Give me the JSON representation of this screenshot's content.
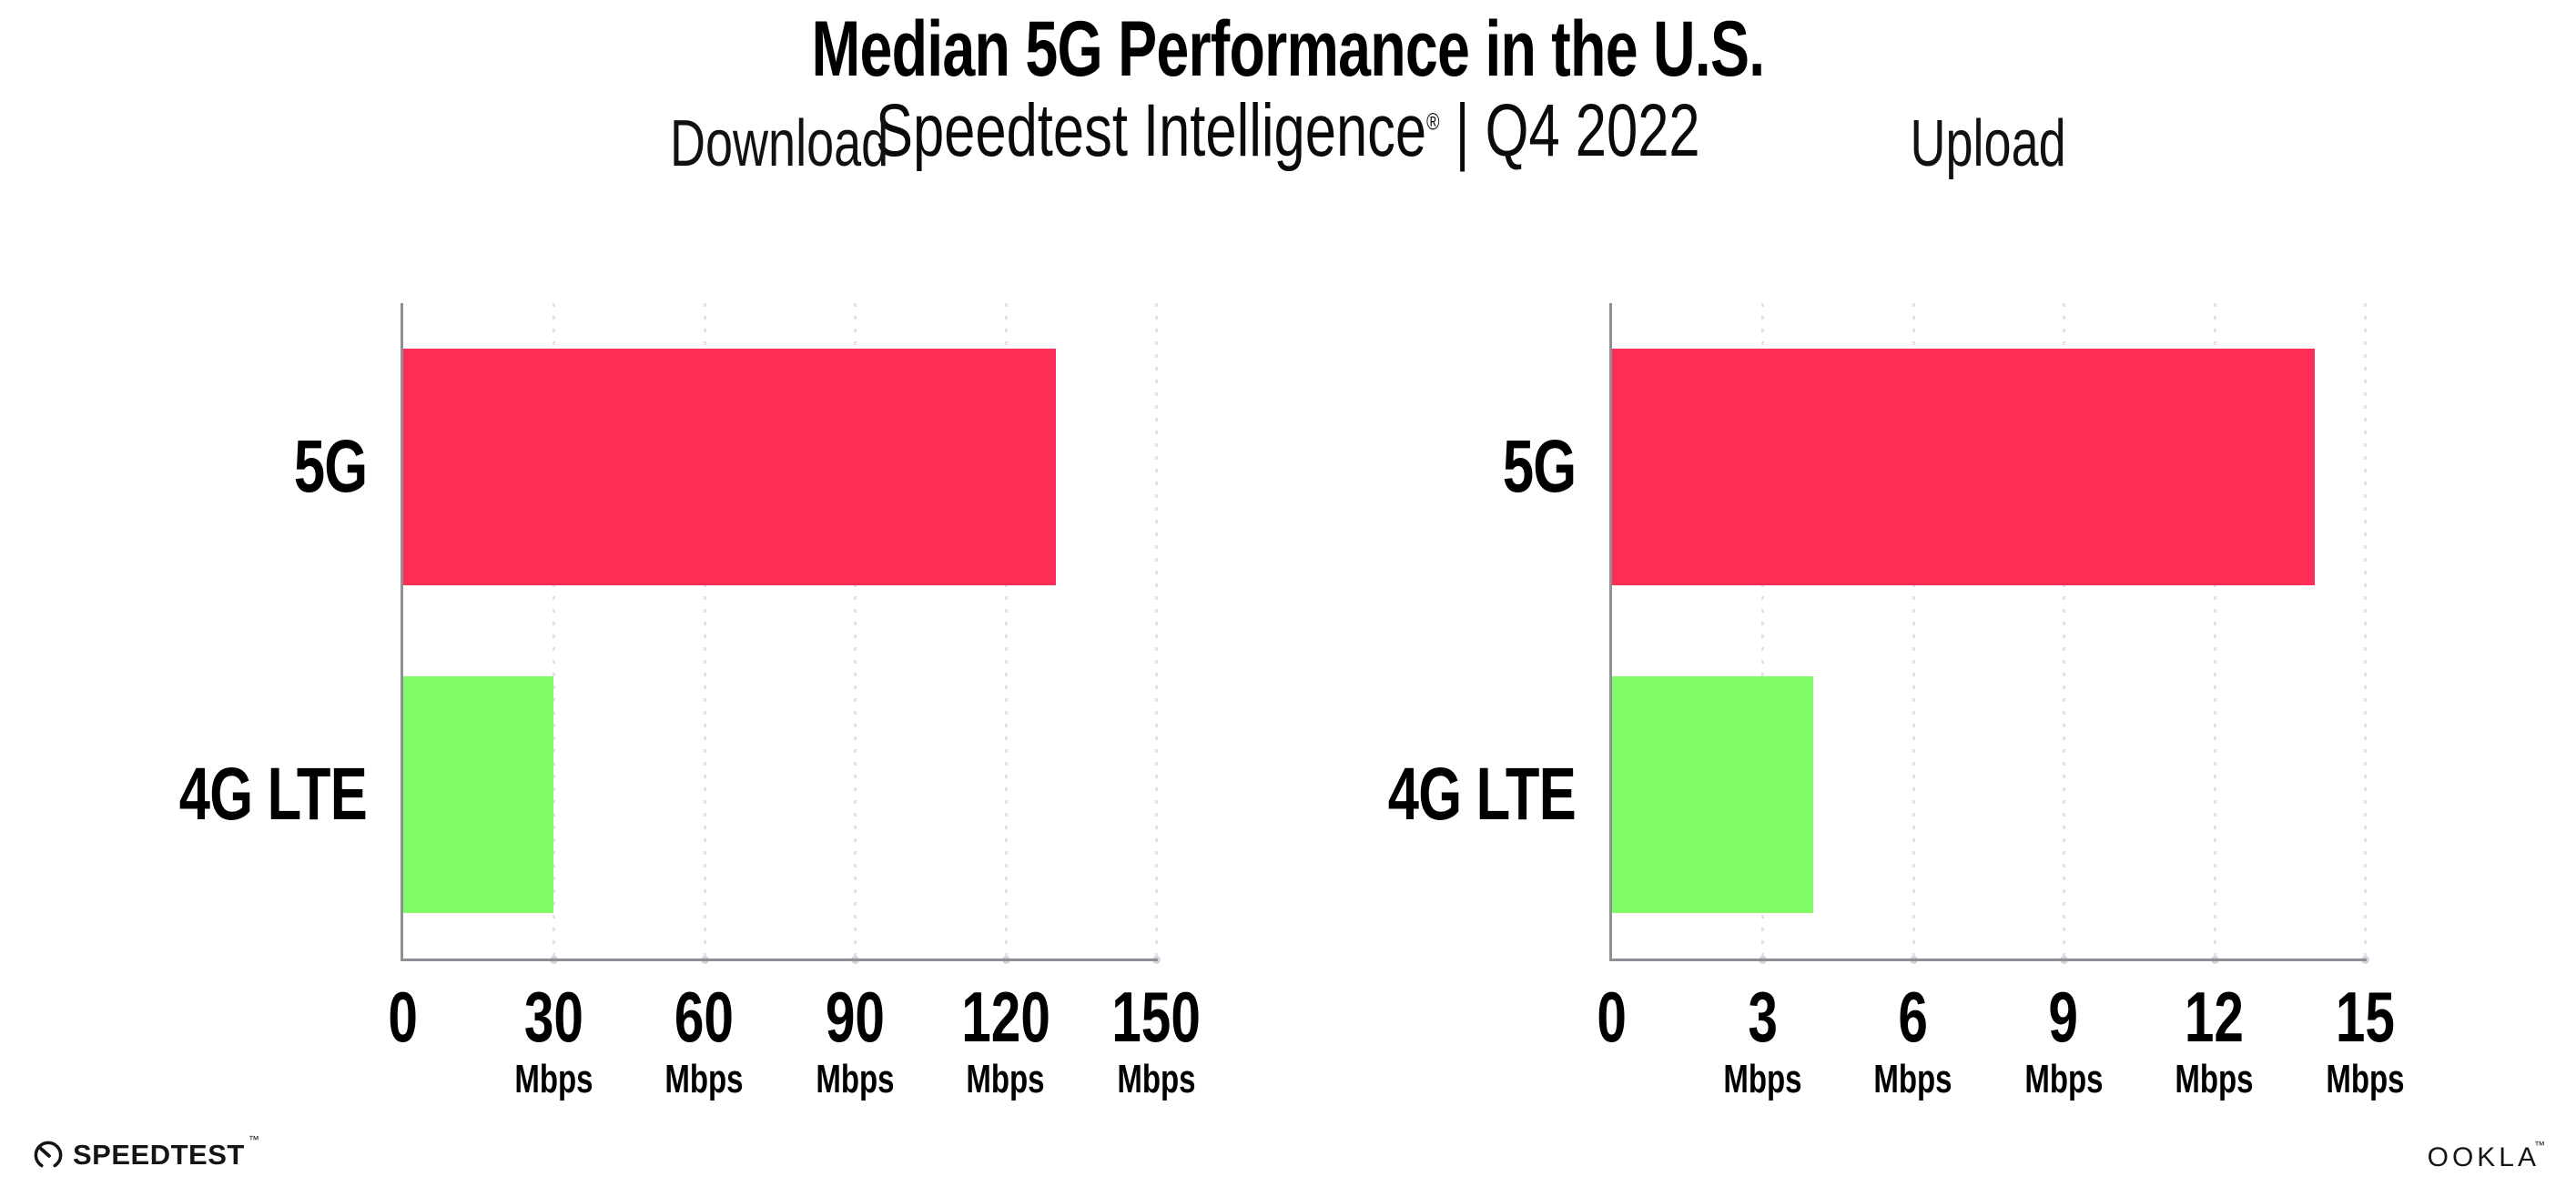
{
  "header": {
    "title": "Median 5G Performance in the U.S.",
    "subtitle_brand": "Speedtest Intelligence",
    "subtitle_reg": "®",
    "subtitle_rest": " | Q4 2022"
  },
  "footer": {
    "speedtest_label": "SPEEDTEST",
    "speedtest_tm": "™",
    "ookla_label": "OOKLA",
    "ookla_tm": "™"
  },
  "colors": {
    "bar_5g": "#FF2E56",
    "bar_4g": "#80FC66",
    "axis": "#8F8F96",
    "gridline": "#E2E2EC",
    "text": "#000000"
  },
  "chart_data": [
    {
      "type": "bar",
      "orientation": "horizontal",
      "title": "Download",
      "categories": [
        "5G",
        "4G LTE"
      ],
      "values": [
        130,
        30
      ],
      "unit": "Mbps",
      "xlim": [
        0,
        150
      ],
      "xticks": [
        0,
        30,
        60,
        90,
        120,
        150
      ],
      "grid": "vertical-dotted",
      "legend": "none",
      "series_colors": [
        "#FF2E56",
        "#80FC66"
      ]
    },
    {
      "type": "bar",
      "orientation": "horizontal",
      "title": "Upload",
      "categories": [
        "5G",
        "4G LTE"
      ],
      "values": [
        14,
        4
      ],
      "unit": "Mbps",
      "xlim": [
        0,
        15
      ],
      "xticks": [
        0,
        3,
        6,
        9,
        12,
        15
      ],
      "grid": "vertical-dotted",
      "legend": "none",
      "series_colors": [
        "#FF2E56",
        "#80FC66"
      ]
    }
  ]
}
